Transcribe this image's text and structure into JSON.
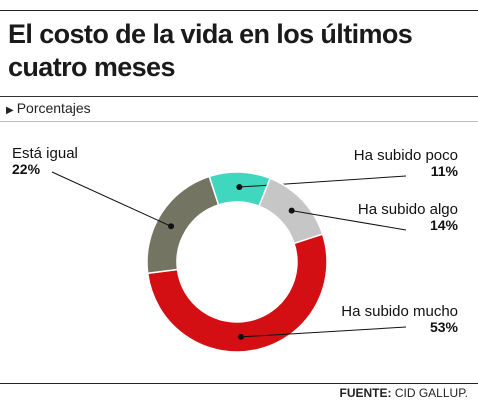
{
  "header": {
    "title": "El costo de la vida en los últimos cuatro meses",
    "subtitle": "Porcentajes"
  },
  "footer": {
    "source_label": "FUENTE:",
    "source_value": "CID GALLUP."
  },
  "chart_data": {
    "type": "pie",
    "donut": true,
    "categories": [
      "Ha subido poco",
      "Ha subido algo",
      "Ha subido mucho",
      "Está igual"
    ],
    "values": [
      11,
      14,
      53,
      22
    ],
    "value_labels": [
      "11%",
      "14%",
      "53%",
      "22%"
    ],
    "colors": [
      "#3fd8bf",
      "#c6c6c6",
      "#d40f14",
      "#737562"
    ],
    "title": "El costo de la vida en los últimos cuatro meses",
    "ylabel": "Porcentajes",
    "legend": "none",
    "grid": false
  }
}
